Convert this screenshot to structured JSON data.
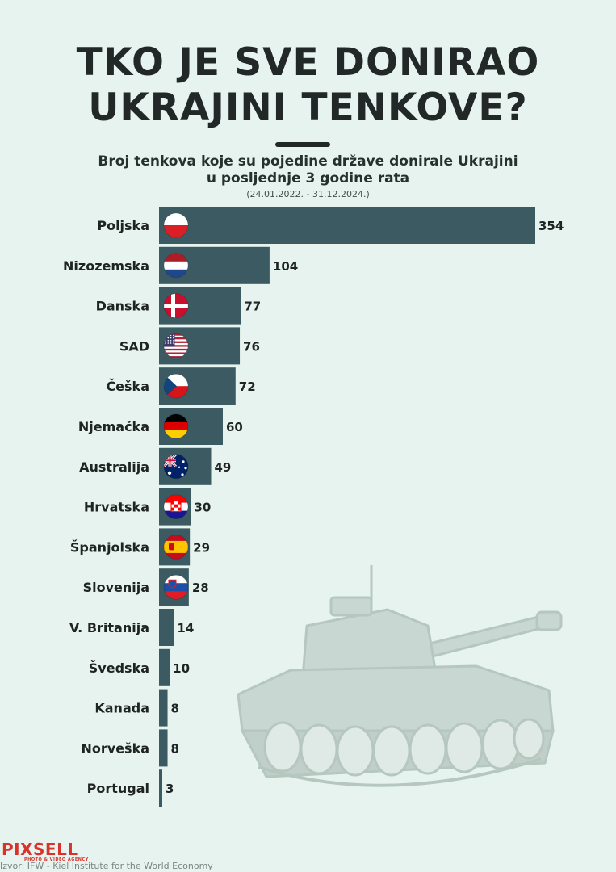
{
  "title": {
    "line1": "TKO JE SVE DONIRAO",
    "line2": "UKRAJINI TENKOVE?"
  },
  "subtitle": {
    "line1": "Broj tenkova koje su pojedine države donirale Ukrajini",
    "line2": "u posljednje 3 godine rata"
  },
  "date_range": "(24.01.2022. - 31.12.2024.)",
  "colors": {
    "background": "#e6f3ef",
    "bar": "#3b5a61",
    "text": "#1f2423",
    "brand": "#d9322a"
  },
  "chart_data": {
    "type": "bar",
    "orientation": "horizontal",
    "title": "Broj tenkova koje su pojedine države donirale Ukrajini u posljednje 3 godine rata",
    "xlabel": "",
    "ylabel": "",
    "xlim": [
      0,
      354
    ],
    "categories": [
      "Poljska",
      "Nizozemska",
      "Danska",
      "SAD",
      "Češka",
      "Njemačka",
      "Australija",
      "Hrvatska",
      "Španjolska",
      "Slovenija",
      "V. Britanija",
      "Švedska",
      "Kanada",
      "Norveška",
      "Portugal"
    ],
    "values": [
      354,
      104,
      77,
      76,
      72,
      60,
      49,
      30,
      29,
      28,
      14,
      10,
      8,
      8,
      3
    ],
    "flags": [
      "poland-flag-icon",
      "netherlands-flag-icon",
      "denmark-flag-icon",
      "usa-flag-icon",
      "czechia-flag-icon",
      "germany-flag-icon",
      "australia-flag-icon",
      "croatia-flag-icon",
      "spain-flag-icon",
      "slovenia-flag-icon",
      "",
      "",
      "",
      "",
      ""
    ]
  },
  "footer": {
    "logo": "PIXSELL",
    "logo_tagline": "PHOTO & VIDEO AGENCY",
    "source": "Izvor: IFW - Kiel Institute for the World Economy"
  }
}
